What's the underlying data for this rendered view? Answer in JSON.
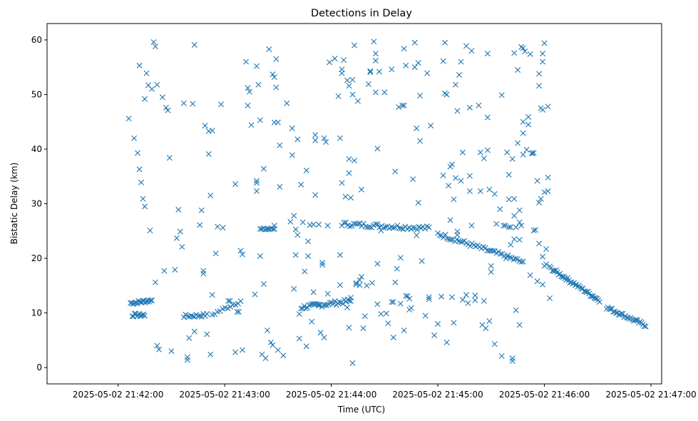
{
  "chart_data": {
    "type": "scatter",
    "title": "Detections in Delay",
    "xlabel": "Time (UTC)",
    "ylabel": "Bistatic Delay (km)",
    "marker": "x",
    "color": "#1f77b4",
    "x_unit": "seconds after 2025-05-02 21:41:20 UTC",
    "xlim": [
      0,
      346
    ],
    "ylim": [
      -3,
      63
    ],
    "xticks": [
      {
        "value": 40,
        "label": "2025-05-02 21:42:00"
      },
      {
        "value": 100,
        "label": "2025-05-02 21:43:00"
      },
      {
        "value": 160,
        "label": "2025-05-02 21:44:00"
      },
      {
        "value": 220,
        "label": "2025-05-02 21:45:00"
      },
      {
        "value": 280,
        "label": "2025-05-02 21:46:00"
      },
      {
        "value": 340,
        "label": "2025-05-02 21:47:00"
      }
    ],
    "yticks": [
      {
        "value": 0,
        "label": "0"
      },
      {
        "value": 10,
        "label": "10"
      },
      {
        "value": 20,
        "label": "20"
      },
      {
        "value": 30,
        "label": "30"
      },
      {
        "value": 40,
        "label": "40"
      },
      {
        "value": 50,
        "label": "50"
      },
      {
        "value": 60,
        "label": "60"
      }
    ],
    "tracks": [
      {
        "name": "track-a",
        "x_start": 47,
        "x_end": 59,
        "y_start": 11.8,
        "y_end": 12.3,
        "count": 20,
        "jitter": 0.3
      },
      {
        "name": "track-b",
        "x_start": 48,
        "x_end": 55,
        "y_start": 9.6,
        "y_end": 9.6,
        "count": 12,
        "jitter": 0.3
      },
      {
        "name": "track-c",
        "x_start": 77,
        "x_end": 90,
        "y_start": 9.4,
        "y_end": 9.6,
        "count": 14,
        "jitter": 0.3
      },
      {
        "name": "track-d",
        "x_start": 93,
        "x_end": 109,
        "y_start": 9.7,
        "y_end": 12.2,
        "count": 12,
        "jitter": 0.3
      },
      {
        "name": "track-e",
        "x_start": 120,
        "x_end": 128,
        "y_start": 25.3,
        "y_end": 25.4,
        "count": 10,
        "jitter": 0.2
      },
      {
        "name": "track-f",
        "x_start": 143,
        "x_end": 171,
        "y_start": 11.0,
        "y_end": 12.2,
        "count": 32,
        "jitter": 0.4
      },
      {
        "name": "track-g",
        "x_start": 166,
        "x_end": 215,
        "y_start": 26.3,
        "y_end": 25.5,
        "count": 45,
        "jitter": 0.4
      },
      {
        "name": "track-h",
        "x_start": 220,
        "x_end": 267,
        "y_start": 24.5,
        "y_end": 19.4,
        "count": 45,
        "jitter": 0.4
      },
      {
        "name": "track-i",
        "x_start": 283,
        "x_end": 311,
        "y_start": 18.3,
        "y_end": 12.3,
        "count": 40,
        "jitter": 0.3
      },
      {
        "name": "track-j",
        "x_start": 315,
        "x_end": 337,
        "y_start": 11.0,
        "y_end": 7.7,
        "count": 30,
        "jitter": 0.3
      }
    ],
    "scatter": [
      [
        46,
        45.6
      ],
      [
        49,
        42.0
      ],
      [
        51,
        39.3
      ],
      [
        52,
        36.3
      ],
      [
        52,
        55.3
      ],
      [
        53,
        33.9
      ],
      [
        54,
        30.9
      ],
      [
        55,
        29.5
      ],
      [
        55,
        49.2
      ],
      [
        56,
        53.9
      ],
      [
        57,
        51.7
      ],
      [
        58,
        25.1
      ],
      [
        59,
        51.0
      ],
      [
        60,
        59.6
      ],
      [
        61,
        58.8
      ],
      [
        61,
        15.6
      ],
      [
        62,
        51.8
      ],
      [
        62,
        4.0
      ],
      [
        63,
        3.3
      ],
      [
        65,
        49.5
      ],
      [
        66,
        17.7
      ],
      [
        67,
        47.6
      ],
      [
        68,
        47.1
      ],
      [
        69,
        38.4
      ],
      [
        70,
        3.0
      ],
      [
        72,
        17.9
      ],
      [
        73,
        23.7
      ],
      [
        74,
        28.9
      ],
      [
        75,
        24.9
      ],
      [
        76,
        22.1
      ],
      [
        77,
        48.4
      ],
      [
        79,
        1.9
      ],
      [
        79,
        1.4
      ],
      [
        80,
        5.4
      ],
      [
        82,
        48.3
      ],
      [
        83,
        59.1
      ],
      [
        83,
        6.6
      ],
      [
        86,
        26.1
      ],
      [
        87,
        28.8
      ],
      [
        88,
        17.7
      ],
      [
        88,
        17.2
      ],
      [
        89,
        44.3
      ],
      [
        90,
        6.1
      ],
      [
        91,
        39.1
      ],
      [
        91,
        43.3
      ],
      [
        92,
        2.4
      ],
      [
        92,
        31.5
      ],
      [
        93,
        43.4
      ],
      [
        93,
        13.3
      ],
      [
        95,
        20.9
      ],
      [
        96,
        25.8
      ],
      [
        98,
        48.2
      ],
      [
        99,
        25.6
      ],
      [
        102,
        12.2
      ],
      [
        103,
        12.2
      ],
      [
        106,
        33.6
      ],
      [
        106,
        2.8
      ],
      [
        107,
        10.2
      ],
      [
        108,
        10.2
      ],
      [
        109,
        21.4
      ],
      [
        110,
        3.2
      ],
      [
        110,
        20.7
      ],
      [
        112,
        56.0
      ],
      [
        113,
        48.0
      ],
      [
        113,
        51.2
      ],
      [
        114,
        50.5
      ],
      [
        115,
        44.4
      ],
      [
        117,
        13.4
      ],
      [
        118,
        55.2
      ],
      [
        118,
        34.2
      ],
      [
        118,
        32.3
      ],
      [
        118,
        33.8
      ],
      [
        119,
        51.8
      ],
      [
        120,
        45.3
      ],
      [
        120,
        20.4
      ],
      [
        121,
        2.4
      ],
      [
        122,
        36.4
      ],
      [
        122,
        15.3
      ],
      [
        123,
        1.7
      ],
      [
        124,
        6.8
      ],
      [
        125,
        58.3
      ],
      [
        126,
        4.6
      ],
      [
        127,
        4.1
      ],
      [
        127,
        53.7
      ],
      [
        128,
        53.2
      ],
      [
        128,
        26.0
      ],
      [
        128,
        44.9
      ],
      [
        129,
        51.3
      ],
      [
        129,
        56.5
      ],
      [
        130,
        44.9
      ],
      [
        130,
        3.2
      ],
      [
        131,
        33.1
      ],
      [
        131,
        40.7
      ],
      [
        133,
        2.2
      ],
      [
        135,
        48.4
      ],
      [
        137,
        26.7
      ],
      [
        138,
        43.8
      ],
      [
        138,
        38.9
      ],
      [
        139,
        14.4
      ],
      [
        139,
        27.8
      ],
      [
        140,
        25.3
      ],
      [
        140,
        20.6
      ],
      [
        141,
        41.8
      ],
      [
        141,
        24.3
      ],
      [
        142,
        9.8
      ],
      [
        142,
        5.3
      ],
      [
        143,
        33.5
      ],
      [
        144,
        26.6
      ],
      [
        145,
        17.6
      ],
      [
        146,
        3.9
      ],
      [
        146,
        36.1
      ],
      [
        147,
        23.1
      ],
      [
        147,
        20.4
      ],
      [
        148,
        26.1
      ],
      [
        149,
        8.4
      ],
      [
        150,
        26.2
      ],
      [
        150,
        13.8
      ],
      [
        151,
        42.6
      ],
      [
        151,
        41.6
      ],
      [
        151,
        31.6
      ],
      [
        153,
        11.3
      ],
      [
        153,
        26.2
      ],
      [
        154,
        6.4
      ],
      [
        155,
        19.2
      ],
      [
        155,
        18.8
      ],
      [
        156,
        5.5
      ],
      [
        156,
        42.0
      ],
      [
        157,
        41.3
      ],
      [
        158,
        26.0
      ],
      [
        158,
        13.5
      ],
      [
        159,
        55.9
      ],
      [
        162,
        56.6
      ],
      [
        164,
        49.7
      ],
      [
        165,
        42.0
      ],
      [
        165,
        20.6
      ],
      [
        165,
        15.1
      ],
      [
        166,
        54.6
      ],
      [
        166,
        53.9
      ],
      [
        166,
        33.8
      ],
      [
        167,
        56.3
      ],
      [
        168,
        31.3
      ],
      [
        169,
        11.0
      ],
      [
        169,
        52.6
      ],
      [
        170,
        7.3
      ],
      [
        170,
        51.6
      ],
      [
        170,
        38.2
      ],
      [
        170,
        35.6
      ],
      [
        171,
        12.8
      ],
      [
        171,
        31.1
      ],
      [
        172,
        0.8
      ],
      [
        172,
        50.0
      ],
      [
        172,
        52.7
      ],
      [
        173,
        59.0
      ],
      [
        173,
        37.9
      ],
      [
        174,
        15.2
      ],
      [
        174,
        15.5
      ],
      [
        175,
        48.8
      ],
      [
        176,
        15.1
      ],
      [
        176,
        16.0
      ],
      [
        177,
        32.6
      ],
      [
        177,
        16.6
      ],
      [
        178,
        7.2
      ],
      [
        179,
        9.4
      ],
      [
        180,
        15.0
      ],
      [
        181,
        51.9
      ],
      [
        182,
        54.1
      ],
      [
        182,
        54.3
      ],
      [
        183,
        15.5
      ],
      [
        184,
        59.7
      ],
      [
        185,
        57.5
      ],
      [
        185,
        56.2
      ],
      [
        185,
        50.4
      ],
      [
        186,
        40.1
      ],
      [
        186,
        19.0
      ],
      [
        186,
        11.6
      ],
      [
        187,
        54.2
      ],
      [
        188,
        25.1
      ],
      [
        188,
        9.8
      ],
      [
        190,
        50.4
      ],
      [
        191,
        9.9
      ],
      [
        192,
        8.1
      ],
      [
        194,
        54.6
      ],
      [
        194,
        12.0
      ],
      [
        195,
        12.0
      ],
      [
        195,
        5.5
      ],
      [
        196,
        35.9
      ],
      [
        196,
        15.6
      ],
      [
        197,
        18.1
      ],
      [
        198,
        47.7
      ],
      [
        199,
        20.1
      ],
      [
        199,
        11.7
      ],
      [
        200,
        48.0
      ],
      [
        201,
        48.0
      ],
      [
        201,
        58.4
      ],
      [
        201,
        6.8
      ],
      [
        202,
        13.1
      ],
      [
        202,
        55.3
      ],
      [
        203,
        13.1
      ],
      [
        204,
        12.6
      ],
      [
        204,
        10.6
      ],
      [
        205,
        10.9
      ],
      [
        206,
        34.5
      ],
      [
        207,
        59.5
      ],
      [
        207,
        55.0
      ],
      [
        208,
        24.2
      ],
      [
        208,
        43.8
      ],
      [
        209,
        55.8
      ],
      [
        209,
        30.2
      ],
      [
        210,
        49.8
      ],
      [
        210,
        41.5
      ],
      [
        211,
        19.5
      ],
      [
        213,
        9.5
      ],
      [
        214,
        53.9
      ],
      [
        215,
        12.5
      ],
      [
        215,
        12.9
      ],
      [
        216,
        44.3
      ],
      [
        218,
        5.9
      ],
      [
        220,
        8.0
      ],
      [
        222,
        13.0
      ],
      [
        223,
        56.1
      ],
      [
        223,
        35.2
      ],
      [
        224,
        59.5
      ],
      [
        224,
        50.2
      ],
      [
        225,
        50.0
      ],
      [
        225,
        4.6
      ],
      [
        226,
        33.3
      ],
      [
        227,
        36.8
      ],
      [
        227,
        27.0
      ],
      [
        228,
        37.2
      ],
      [
        228,
        12.9
      ],
      [
        229,
        30.8
      ],
      [
        229,
        8.2
      ],
      [
        230,
        51.8
      ],
      [
        230,
        34.7
      ],
      [
        231,
        47.0
      ],
      [
        231,
        24.9
      ],
      [
        231,
        24.3
      ],
      [
        232,
        53.6
      ],
      [
        233,
        56.0
      ],
      [
        233,
        34.2
      ],
      [
        234,
        39.4
      ],
      [
        234,
        12.4
      ],
      [
        236,
        58.9
      ],
      [
        236,
        13.3
      ],
      [
        237,
        11.8
      ],
      [
        238,
        35.1
      ],
      [
        238,
        47.6
      ],
      [
        238,
        32.3
      ],
      [
        239,
        58.0
      ],
      [
        239,
        26.0
      ],
      [
        241,
        12.3
      ],
      [
        241,
        13.2
      ],
      [
        243,
        48.0
      ],
      [
        244,
        32.3
      ],
      [
        244,
        39.4
      ],
      [
        245,
        7.8
      ],
      [
        246,
        38.3
      ],
      [
        246,
        12.2
      ],
      [
        247,
        7.2
      ],
      [
        248,
        57.5
      ],
      [
        248,
        45.8
      ],
      [
        248,
        39.8
      ],
      [
        249,
        32.6
      ],
      [
        249,
        8.5
      ],
      [
        250,
        17.5
      ],
      [
        250,
        18.6
      ],
      [
        252,
        4.3
      ],
      [
        252,
        31.8
      ],
      [
        253,
        26.3
      ],
      [
        255,
        29.0
      ],
      [
        256,
        49.9
      ],
      [
        256,
        2.1
      ],
      [
        257,
        26.0
      ],
      [
        258,
        26.0
      ],
      [
        259,
        39.4
      ],
      [
        259,
        20.4
      ],
      [
        260,
        35.3
      ],
      [
        260,
        30.8
      ],
      [
        260,
        25.7
      ],
      [
        261,
        25.7
      ],
      [
        261,
        22.5
      ],
      [
        262,
        38.2
      ],
      [
        262,
        1.2
      ],
      [
        262,
        1.7
      ],
      [
        263,
        30.9
      ],
      [
        263,
        27.8
      ],
      [
        263,
        23.5
      ],
      [
        263,
        57.6
      ],
      [
        264,
        25.7
      ],
      [
        264,
        10.5
      ],
      [
        265,
        54.5
      ],
      [
        265,
        41.1
      ],
      [
        266,
        23.4
      ],
      [
        266,
        26.6
      ],
      [
        266,
        28.8
      ],
      [
        266,
        7.8
      ],
      [
        267,
        58.7
      ],
      [
        267,
        26.0
      ],
      [
        268,
        58.5
      ],
      [
        268,
        19.4
      ],
      [
        268,
        39.0
      ],
      [
        268,
        45.0
      ],
      [
        268,
        42.9
      ],
      [
        269,
        57.9
      ],
      [
        270,
        39.9
      ],
      [
        271,
        45.9
      ],
      [
        271,
        44.5
      ],
      [
        272,
        57.4
      ],
      [
        272,
        16.9
      ],
      [
        273,
        39.2
      ],
      [
        273,
        39.3
      ],
      [
        274,
        39.3
      ],
      [
        274,
        25.1
      ],
      [
        275,
        25.2
      ],
      [
        276,
        34.2
      ],
      [
        276,
        15.8
      ],
      [
        277,
        53.8
      ],
      [
        277,
        51.6
      ],
      [
        277,
        30.2
      ],
      [
        277,
        22.7
      ],
      [
        278,
        30.9
      ],
      [
        278,
        47.5
      ],
      [
        279,
        47.2
      ],
      [
        279,
        57.5
      ],
      [
        279,
        56.0
      ],
      [
        279,
        20.3
      ],
      [
        279,
        15.2
      ],
      [
        280,
        59.4
      ],
      [
        280,
        32.1
      ],
      [
        280,
        18.6
      ],
      [
        281,
        18.9
      ],
      [
        281,
        21.7
      ],
      [
        282,
        34.8
      ],
      [
        282,
        32.3
      ],
      [
        282,
        47.8
      ],
      [
        283,
        12.7
      ]
    ]
  }
}
